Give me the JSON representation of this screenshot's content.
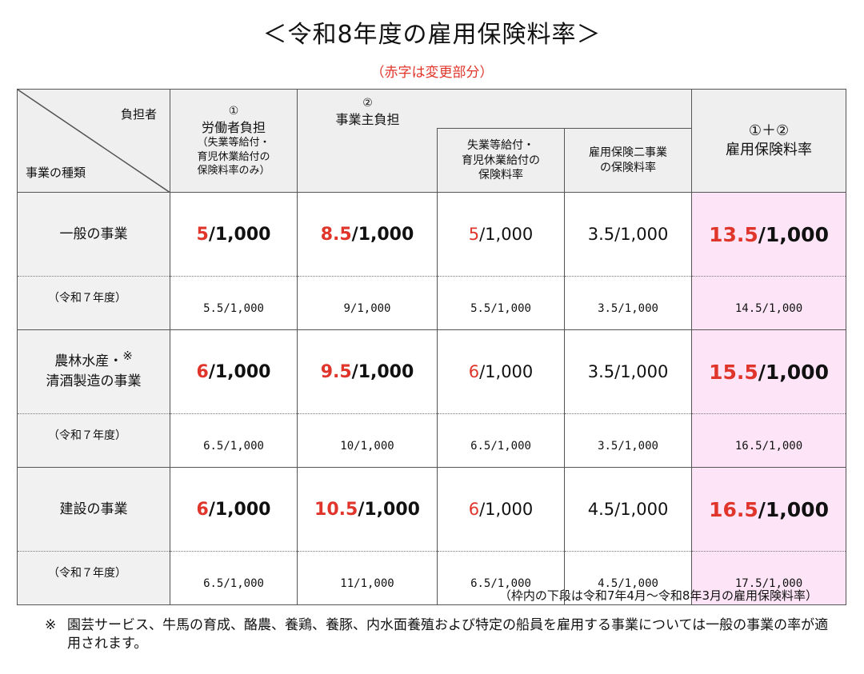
{
  "title": "＜令和8年度の雇用保険料率＞",
  "subtitle": "（赤字は変更部分）",
  "table": {
    "corner_top": "負担者",
    "corner_bottom": "事業の種類",
    "col1_num": "①",
    "col1_title": "労働者負担",
    "col1_sub1": "（失業等給付・",
    "col1_sub2": "育児休業給付の",
    "col1_sub3": "保険料率のみ）",
    "col2_num": "②",
    "col2_title": "事業主負担",
    "col2a_1": "失業等給付・",
    "col2a_2": "育児休業給付の",
    "col2a_3": "保険料率",
    "col2b_1": "雇用保険二事業",
    "col2b_2": "の保険料率",
    "col3_num": "①＋②",
    "col3_title": "雇用保険料率",
    "prev_label": "（令和７年度）",
    "rows": [
      {
        "label1": "一般の事業",
        "label2": "",
        "star": "",
        "worker_red": "5",
        "worker_rest": "/1,000",
        "employer_red": "8.5",
        "employer_rest": "/1,000",
        "unemp_red": "5",
        "unemp_rest": "/1,000",
        "two": "3.5/1,000",
        "total_red": "13.5",
        "total_rest": "/1,000",
        "prev": [
          "5.5/1,000",
          "9/1,000",
          "5.5/1,000",
          "3.5/1,000",
          "14.5/1,000"
        ]
      },
      {
        "label1": "農林水産・",
        "label2": "清酒製造の事業",
        "star": "※",
        "worker_red": "6",
        "worker_rest": "/1,000",
        "employer_red": "9.5",
        "employer_rest": "/1,000",
        "unemp_red": "6",
        "unemp_rest": "/1,000",
        "two": "3.5/1,000",
        "total_red": "15.5",
        "total_rest": "/1,000",
        "prev": [
          "6.5/1,000",
          "10/1,000",
          "6.5/1,000",
          "3.5/1,000",
          "16.5/1,000"
        ]
      },
      {
        "label1": "建設の事業",
        "label2": "",
        "star": "",
        "worker_red": "6",
        "worker_rest": "/1,000",
        "employer_red": "10.5",
        "employer_rest": "/1,000",
        "unemp_red": "6",
        "unemp_rest": "/1,000",
        "two": "4.5/1,000",
        "total_red": "16.5",
        "total_rest": "/1,000",
        "prev": [
          "6.5/1,000",
          "11/1,000",
          "6.5/1,000",
          "4.5/1,000",
          "17.5/1,000"
        ]
      }
    ]
  },
  "note_period": "（枠内の下段は令和7年4月～令和8年3月の雇用保険料率）",
  "note_mark": "※",
  "note_text": "園芸サービス、牛馬の育成、酪農、養鶏、養豚、内水面養殖および特定の船員を雇用する事業については一般の事業の率が適用されます。",
  "colors": {
    "red": "#e0352b",
    "pink": "#fde5f7",
    "header_gray": "#efefef"
  }
}
